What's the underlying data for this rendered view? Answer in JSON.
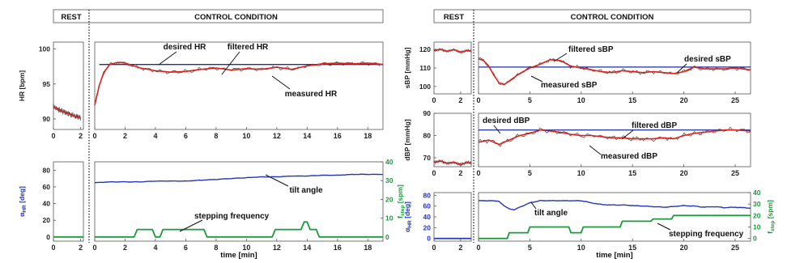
{
  "chart_data": [
    {
      "panel": "left",
      "type": "line",
      "headers": {
        "rest": "REST",
        "control": "CONTROL CONDITION"
      },
      "colors": {
        "desired": "#1a2fa0",
        "filtered": "#e0201a",
        "measured": "#444444",
        "tilt": "#2436b8",
        "stepping": "#1a9a3a"
      },
      "top": {
        "ylabel": "HR [bpm]",
        "yticks": [
          90,
          95,
          100
        ],
        "ylim": [
          88.5,
          101
        ],
        "rest_xticks": [
          0,
          2
        ],
        "control_xticks": [
          0,
          2,
          4,
          6,
          8,
          10,
          12,
          14,
          16,
          18
        ],
        "rest_xlim": [
          0,
          2.2
        ],
        "control_xlim": [
          0,
          19
        ],
        "annotations": {
          "desired": "desired HR",
          "filtered": "filtered HR",
          "measured": "measured HR"
        },
        "desired": 97.8,
        "rest_filtered": {
          "x": [
            0,
            0.4,
            0.8,
            1.2,
            1.6,
            2.0
          ],
          "y": [
            91.8,
            91.3,
            91.0,
            90.7,
            90.4,
            90.2
          ]
        },
        "control_filtered": {
          "x": [
            0,
            0.3,
            0.6,
            1.0,
            1.5,
            2,
            3,
            4,
            5,
            6,
            7,
            8,
            9,
            10,
            11,
            12,
            13,
            14,
            15,
            16,
            17,
            18,
            19
          ],
          "y": [
            92.0,
            94.8,
            96.7,
            97.8,
            98.1,
            98.0,
            97.3,
            96.9,
            96.7,
            96.8,
            97.1,
            97.3,
            97.0,
            97.2,
            97.1,
            97.4,
            97.1,
            97.6,
            97.9,
            98.0,
            97.9,
            98.0,
            97.8
          ]
        }
      },
      "bottom": {
        "ylabel_left": "α_HR [deg]",
        "ylabel_right": "f_step [spm]",
        "yticks_left": [
          0,
          20,
          40,
          60,
          80
        ],
        "ylim_left": [
          -5,
          90
        ],
        "yticks_right": [
          0,
          10,
          20,
          30,
          40
        ],
        "ylim_right": [
          -2.22,
          40
        ],
        "rest_xticks": [
          0,
          2
        ],
        "control_xticks": [
          0,
          2,
          4,
          6,
          8,
          10,
          12,
          14,
          16,
          18
        ],
        "rest_xlim": [
          0,
          2.2
        ],
        "control_xlim": [
          0,
          19
        ],
        "xlabel": "time [min]",
        "annotations": {
          "tilt": "tilt angle",
          "stepping": "stepping frequency"
        },
        "tilt": {
          "x": [
            0,
            1,
            2,
            3,
            4,
            5,
            6,
            7,
            8,
            9,
            10,
            11,
            12,
            13,
            14,
            15,
            16,
            17,
            18,
            19
          ],
          "y": [
            65,
            66,
            66,
            66,
            67,
            67,
            67,
            68,
            69,
            70,
            71,
            72,
            72,
            73,
            73,
            74,
            74,
            75,
            75,
            75
          ]
        },
        "rest_tilt": {
          "x": [
            0,
            2.2
          ],
          "y": [
            0,
            0
          ]
        },
        "stepping": {
          "x": [
            0,
            2.6,
            2.8,
            3.8,
            4.0,
            4.3,
            4.5,
            7.2,
            7.4,
            11.7,
            11.9,
            13.6,
            13.8,
            14.0,
            14.2,
            14.6,
            14.8,
            19
          ],
          "y": [
            0,
            0,
            4,
            4,
            0,
            0,
            4,
            4,
            0,
            0,
            4,
            4,
            8,
            8,
            4,
            4,
            0,
            0
          ]
        },
        "rest_stepping": {
          "x": [
            0,
            2.2
          ],
          "y": [
            0,
            0
          ]
        }
      }
    },
    {
      "panel": "right",
      "type": "line",
      "headers": {
        "rest": "REST",
        "control": "CONTROL CONDITION"
      },
      "colors": {
        "desired": "#1a2fa0",
        "filtered": "#e0201a",
        "measured": "#444444",
        "tilt": "#2436b8",
        "stepping": "#1a9a3a"
      },
      "sbp": {
        "ylabel": "sBP [mmHg]",
        "yticks": [
          100,
          110,
          120
        ],
        "ylim": [
          96,
          124
        ],
        "rest_xticks": [
          0,
          2
        ],
        "control_xticks": [
          0,
          5,
          10,
          15,
          20,
          25
        ],
        "rest_xlim": [
          0,
          2.8
        ],
        "control_xlim": [
          0,
          26.5
        ],
        "annotations": {
          "desired": "desired sBP",
          "filtered": "filtered sBP",
          "measured": "measured sBP"
        },
        "desired": 110.5,
        "rest_filtered": {
          "x": [
            0,
            0.5,
            1.0,
            1.5,
            2.0,
            2.5,
            2.8
          ],
          "y": [
            119.5,
            120.0,
            119.0,
            120.0,
            118.5,
            119.5,
            119.0
          ]
        },
        "control_filtered": {
          "x": [
            0,
            0.5,
            1.0,
            1.5,
            2.0,
            2.5,
            3,
            4,
            5,
            6,
            7,
            8,
            9,
            10,
            11,
            12,
            13,
            14,
            15,
            16,
            17,
            18,
            19,
            20,
            21,
            22,
            23,
            24,
            25,
            26.5
          ],
          "y": [
            115,
            114,
            111,
            106,
            102,
            101,
            103,
            107,
            110,
            112,
            114.5,
            114,
            111,
            110,
            109,
            108,
            107.5,
            108.5,
            108,
            107.5,
            108,
            107.5,
            107,
            108,
            110.5,
            109.5,
            109.5,
            109.5,
            110,
            109
          ]
        }
      },
      "dbp": {
        "ylabel": "dBP [mmHg]",
        "yticks": [
          70,
          80,
          90
        ],
        "ylim": [
          66,
          90
        ],
        "rest_xticks": [
          0,
          2
        ],
        "control_xticks": [
          0,
          5,
          10,
          15,
          20,
          25
        ],
        "rest_xlim": [
          0,
          2.8
        ],
        "control_xlim": [
          0,
          26.5
        ],
        "annotations": {
          "desired": "desired dBP",
          "filtered": "filtered dBP",
          "measured": "measured dBP"
        },
        "desired": 82.5,
        "rest_filtered": {
          "x": [
            0,
            0.5,
            1.0,
            1.5,
            2.0,
            2.5,
            2.8
          ],
          "y": [
            68,
            68.5,
            67.5,
            68,
            67,
            68,
            67.5
          ]
        },
        "control_filtered": {
          "x": [
            0,
            1,
            2,
            3,
            4,
            5,
            6,
            7,
            8,
            9,
            10,
            11,
            12,
            13,
            14,
            15,
            16,
            17,
            18,
            19,
            20,
            21,
            22,
            23,
            24,
            25,
            26.5
          ],
          "y": [
            77,
            78,
            76,
            78,
            80,
            81,
            82.5,
            82,
            81.5,
            80.5,
            80,
            80,
            79.5,
            79,
            79,
            78.5,
            78.5,
            78.5,
            79,
            78.5,
            80,
            81,
            81.5,
            82,
            82.5,
            82.5,
            82
          ]
        }
      },
      "bottom": {
        "ylabel_left": "α_HR [deg]",
        "ylabel_right": "f_step [spm]",
        "yticks_left": [
          0,
          20,
          40,
          60,
          80
        ],
        "ylim_left": [
          -5,
          85
        ],
        "yticks_right": [
          0,
          10,
          20,
          30,
          40
        ],
        "ylim_right": [
          -2.35,
          40
        ],
        "rest_xticks": [
          0,
          2
        ],
        "control_xticks": [
          0,
          5,
          10,
          15,
          20,
          25
        ],
        "rest_xlim": [
          0,
          2.8
        ],
        "control_xlim": [
          0,
          26.5
        ],
        "xlabel": "time [min]",
        "annotations": {
          "tilt": "tilt angle",
          "stepping": "stepping frequency"
        },
        "tilt": {
          "x": [
            0,
            1,
            2,
            2.5,
            3,
            3.5,
            4,
            5,
            6,
            7,
            8,
            9,
            10,
            11,
            12,
            13,
            14,
            15,
            16,
            17,
            18,
            19,
            20,
            21,
            22,
            23,
            24,
            25,
            26.5
          ],
          "y": [
            70,
            70,
            69,
            60,
            55,
            53,
            58,
            66,
            70,
            70,
            70,
            70,
            70,
            66,
            63,
            62,
            62,
            61,
            60,
            59,
            58,
            59,
            61,
            60,
            58,
            59,
            57,
            58,
            56
          ]
        },
        "rest_tilt": {
          "x": [
            0,
            2.8
          ],
          "y": [
            0,
            0
          ]
        },
        "stepping": {
          "x": [
            0,
            2.8,
            3.0,
            4.8,
            5.0,
            8.8,
            9.0,
            10.0,
            10.2,
            13.8,
            14.0,
            16.8,
            17.0,
            18.8,
            19.0,
            26.5
          ],
          "y": [
            0,
            0,
            5,
            5,
            10,
            10,
            5,
            5,
            10,
            10,
            15,
            15,
            17,
            17,
            20,
            20
          ]
        },
        "rest_stepping": {
          "x": [
            0,
            2.8
          ],
          "y": [
            0,
            0
          ]
        }
      }
    }
  ]
}
